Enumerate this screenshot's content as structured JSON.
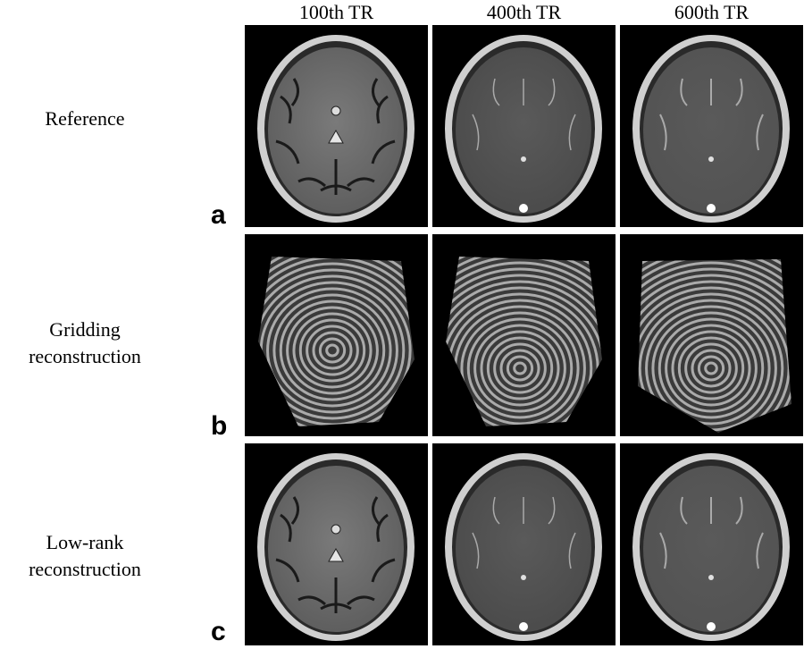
{
  "columns": [
    "100th TR",
    "400th TR",
    "600th TR"
  ],
  "rows": [
    {
      "label_lines": [
        "Reference"
      ],
      "panel": "a",
      "kind": "reference"
    },
    {
      "label_lines": [
        "Gridding",
        "reconstruction"
      ],
      "panel": "b",
      "kind": "gridding"
    },
    {
      "label_lines": [
        "Low-rank",
        "reconstruction"
      ],
      "panel": "c",
      "kind": "lowrank"
    }
  ],
  "image_descriptions": {
    "reference": "axial brain MRI slice",
    "gridding": "brain MRI slice with heavy spiral streak artifacts",
    "lowrank": "reconstructed axial brain MRI slice"
  },
  "colors": {
    "background": "#000000",
    "tissue": "#8a8a8a",
    "skull": "#d8d8d8"
  }
}
